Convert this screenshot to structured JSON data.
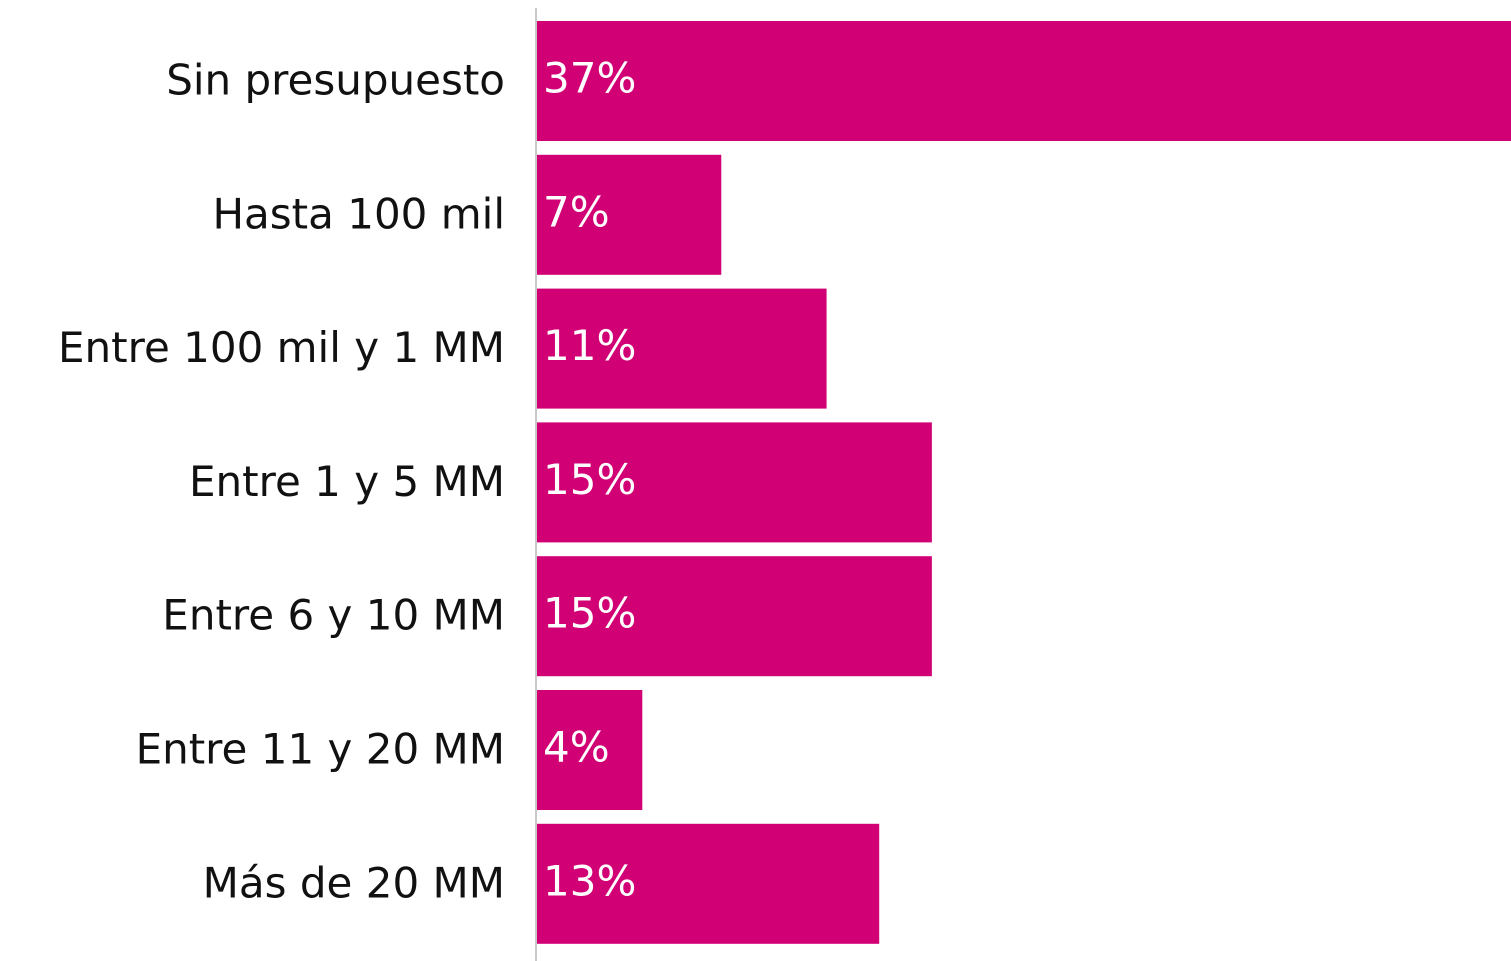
{
  "chart_data": {
    "type": "bar",
    "orientation": "horizontal",
    "categories": [
      "Sin presupuesto",
      "Hasta 100 mil",
      "Entre 100 mil y 1 MM",
      "Entre 1 y 5 MM",
      "Entre 6 y 10 MM",
      "Entre 11 y 20 MM",
      "Más de 20 MM"
    ],
    "values": [
      37,
      7,
      11,
      15,
      15,
      4,
      13
    ],
    "value_labels": [
      "37%",
      "7%",
      "11%",
      "15%",
      "15%",
      "4%",
      "13%"
    ],
    "color": "#d10074"
  }
}
